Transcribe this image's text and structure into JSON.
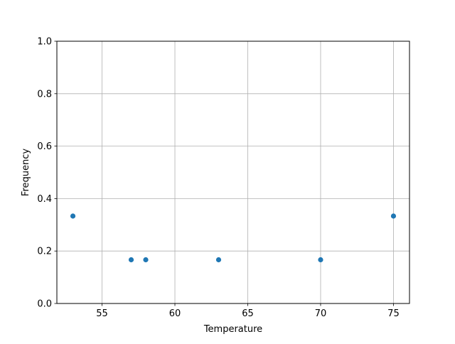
{
  "chart_data": {
    "type": "scatter",
    "title": "",
    "xlabel": "Temperature",
    "ylabel": "Frequency",
    "xlim": [
      51.9,
      76.1
    ],
    "ylim": [
      0,
      1.0
    ],
    "xticks": [
      55,
      60,
      65,
      70,
      75
    ],
    "yticks": [
      0.0,
      0.2,
      0.4,
      0.6,
      0.8,
      1.0
    ],
    "xtick_labels": [
      "55",
      "60",
      "65",
      "70",
      "75"
    ],
    "ytick_labels": [
      "0.0",
      "0.2",
      "0.4",
      "0.6",
      "0.8",
      "1.0"
    ],
    "grid": true,
    "points": [
      {
        "x": 53,
        "y": 0.3333
      },
      {
        "x": 57,
        "y": 0.1667
      },
      {
        "x": 58,
        "y": 0.1667
      },
      {
        "x": 63,
        "y": 0.1667
      },
      {
        "x": 70,
        "y": 0.1667
      },
      {
        "x": 75,
        "y": 0.3333
      }
    ],
    "marker_color": "#1f77b4",
    "grid_color": "#b0b0b0"
  }
}
